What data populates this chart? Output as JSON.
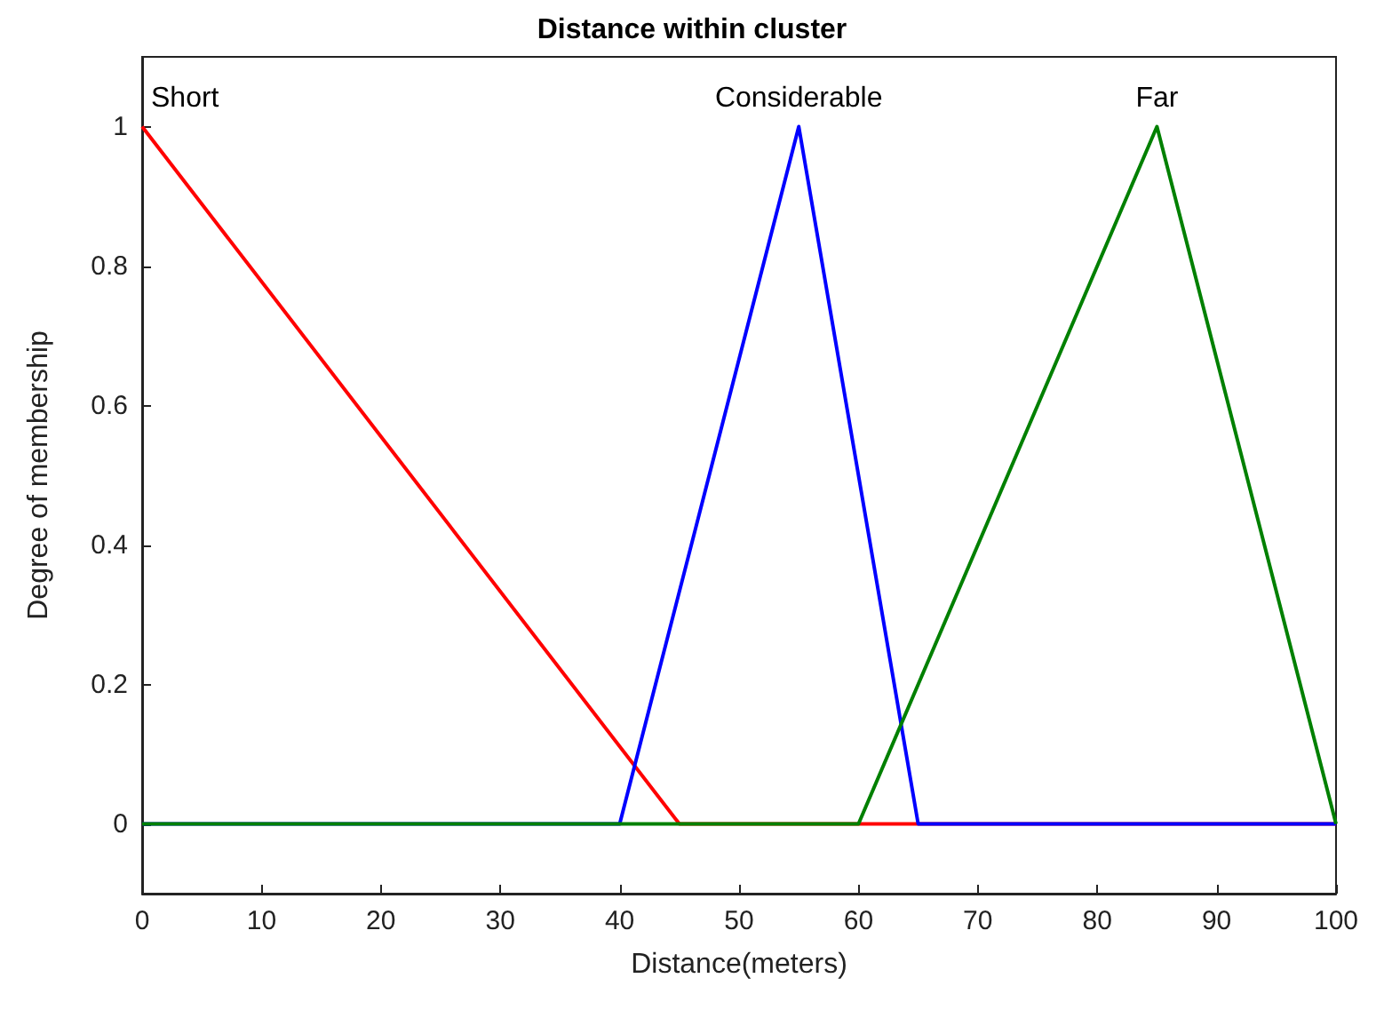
{
  "chart_data": {
    "type": "line",
    "title": "Distance within cluster",
    "xlabel": "Distance(meters)",
    "ylabel": "Degree of membership",
    "series": [
      {
        "name": "Short",
        "color": "#ff0000",
        "x": [
          0,
          45,
          100
        ],
        "values": [
          1,
          0,
          0
        ]
      },
      {
        "name": "Considerable",
        "color": "#0000ff",
        "x": [
          0,
          40,
          55,
          65,
          100
        ],
        "values": [
          0,
          0,
          1,
          0,
          0
        ]
      },
      {
        "name": "Far",
        "color": "#008000",
        "x": [
          0,
          60,
          85,
          100
        ],
        "values": [
          0,
          0,
          1,
          0
        ]
      }
    ],
    "xlim": [
      0,
      100
    ],
    "xticks": [
      0,
      10,
      20,
      30,
      40,
      50,
      60,
      70,
      80,
      90,
      100
    ],
    "ylim": [
      -0.1,
      1.1
    ],
    "yticks": [
      0,
      0.2,
      0.4,
      0.6,
      0.8,
      1
    ],
    "grid": false,
    "legend": false,
    "marker": "none",
    "line_style": "solid"
  }
}
